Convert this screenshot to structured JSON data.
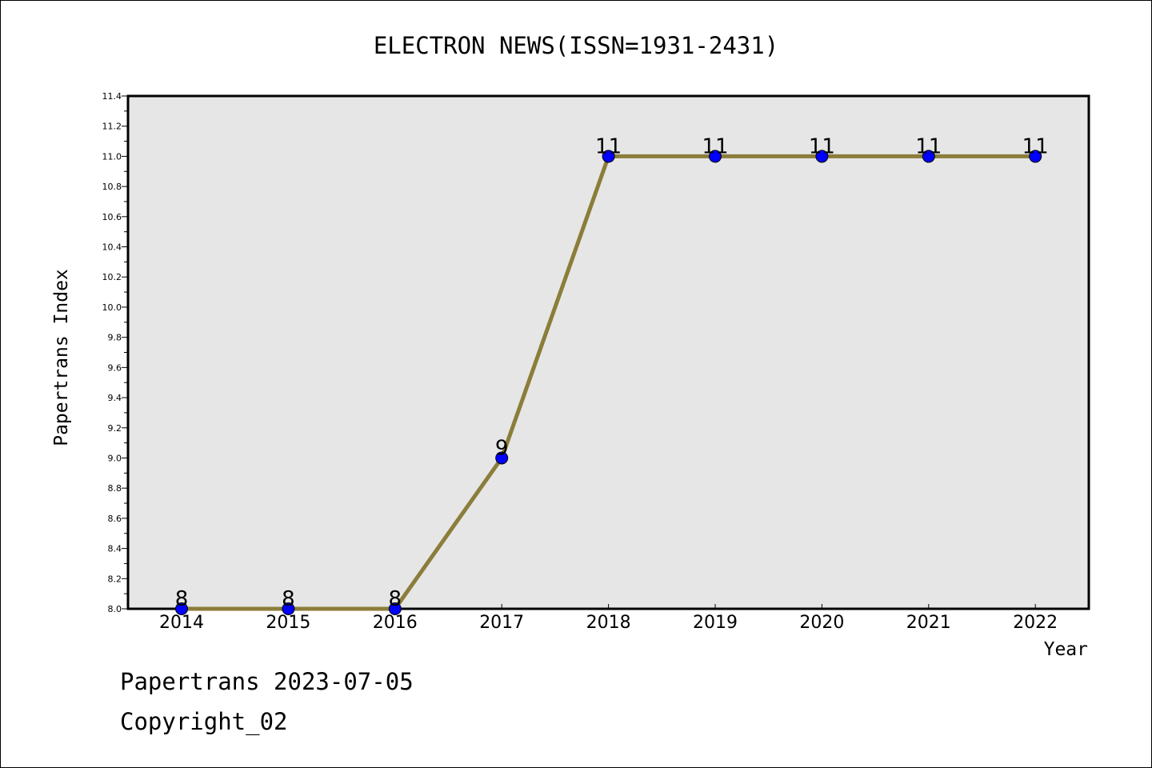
{
  "chart_data": {
    "type": "line",
    "title": "ELECTRON NEWS(ISSN=1931-2431)",
    "xlabel": "Year",
    "ylabel": "Papertrans Index",
    "categories": [
      "2014",
      "2015",
      "2016",
      "2017",
      "2018",
      "2019",
      "2020",
      "2021",
      "2022"
    ],
    "series": [
      {
        "values": [
          8,
          8,
          8,
          9,
          11,
          11,
          11,
          11,
          11
        ]
      }
    ],
    "data_labels": [
      "8",
      "8",
      "8",
      "9",
      "11",
      "11",
      "11",
      "11",
      "11"
    ],
    "ylim": [
      8.0,
      11.4
    ],
    "yticks": [
      "8.0",
      "8.2",
      "8.4",
      "8.6",
      "8.8",
      "9.0",
      "9.2",
      "9.4",
      "9.6",
      "9.8",
      "10.0",
      "10.2",
      "10.4",
      "10.6",
      "10.8",
      "11.0",
      "11.2",
      "11.4"
    ],
    "grid": false,
    "colors": {
      "line": "#8b7d3a",
      "marker": "#0000ff",
      "plot_background": "#e6e6e6"
    }
  },
  "footer": {
    "date_line": "Papertrans 2023-07-05",
    "copyright": "Copyright_02"
  }
}
